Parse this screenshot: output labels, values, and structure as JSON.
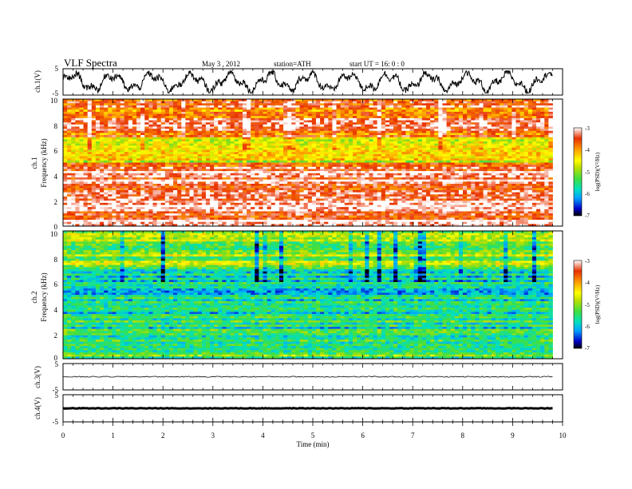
{
  "header": {
    "title": "VLF  Spectra",
    "date": "May 3  , 2012",
    "station": "station=ATH",
    "start": "start  UT  =    16: 0  : 0"
  },
  "colorbar": {
    "label": "log(PSD)(V²/Hz)",
    "ticks": [
      "-3",
      "-4",
      "-5",
      "-6",
      "-7"
    ],
    "colors": [
      "#000000",
      "#0000c8",
      "#00a0ff",
      "#00e0c0",
      "#40e040",
      "#c0e000",
      "#ffff00",
      "#ffa000",
      "#e83000",
      "#ffffff"
    ]
  },
  "chart_data": [
    {
      "type": "line",
      "panel": "ch1-waveform",
      "ylabel": "ch.1(V)",
      "ytick_labels": [
        "5",
        "-5"
      ],
      "ylim": [
        -5,
        5
      ],
      "xlim": [
        0,
        10
      ],
      "data_until_min": 9.8,
      "amplitude_note": "oscillates roughly between -4 and 4"
    },
    {
      "type": "heatmap",
      "panel": "ch1-spectrogram",
      "label_top": "ch.1",
      "ylabel": "Frequency  (kHz)",
      "ytick_labels": [
        "10",
        "8",
        "6",
        "4",
        "2",
        "0"
      ],
      "ylim": [
        0,
        10
      ],
      "xlim": [
        0,
        10
      ],
      "data_until_min": 9.8,
      "clim": [
        -7,
        -3
      ],
      "dominant_level_by_band": [
        {
          "f_khz": [
            7,
            10
          ],
          "log_psd": -3.6
        },
        {
          "f_khz": [
            5,
            7
          ],
          "log_psd": -4.6
        },
        {
          "f_khz": [
            0.5,
            5
          ],
          "log_psd": -3.3
        },
        {
          "f_khz": [
            0,
            0.5
          ],
          "log_psd": -3.0
        }
      ]
    },
    {
      "type": "heatmap",
      "panel": "ch2-spectrogram",
      "label_top": "ch.2",
      "ylabel": "Frequency  (kHz)",
      "ytick_labels": [
        "10",
        "8",
        "6",
        "4",
        "2",
        "0"
      ],
      "ylim": [
        0,
        10
      ],
      "xlim": [
        0,
        10
      ],
      "data_until_min": 9.8,
      "clim": [
        -7,
        -3
      ],
      "dominant_level_by_band": [
        {
          "f_khz": [
            7,
            10
          ],
          "log_psd": -5.0
        },
        {
          "f_khz": [
            5,
            7
          ],
          "log_psd": -5.8
        },
        {
          "f_khz": [
            1,
            5
          ],
          "log_psd": -5.6
        },
        {
          "f_khz": [
            0,
            1
          ],
          "log_psd": -5.3
        }
      ]
    },
    {
      "type": "line",
      "panel": "ch3-waveform",
      "ylabel": "ch.3(V)",
      "ytick_labels": [
        "5",
        "-5"
      ],
      "ylim": [
        -5,
        5
      ],
      "xlim": [
        0,
        10
      ],
      "data_until_min": 9.8,
      "approx_level_v": 0
    },
    {
      "type": "line",
      "panel": "ch4-waveform",
      "ylabel": "ch.4(V)",
      "ytick_labels": [
        "5",
        "-5"
      ],
      "ylim": [
        -5,
        5
      ],
      "xlim": [
        0,
        10
      ],
      "data_until_min": 9.8,
      "approx_level_v": 0
    }
  ],
  "xaxis": {
    "label": "Time  (min)",
    "ticks": [
      "0",
      "1",
      "2",
      "3",
      "4",
      "5",
      "6",
      "7",
      "8",
      "9",
      "10"
    ],
    "range": [
      0,
      10
    ]
  }
}
